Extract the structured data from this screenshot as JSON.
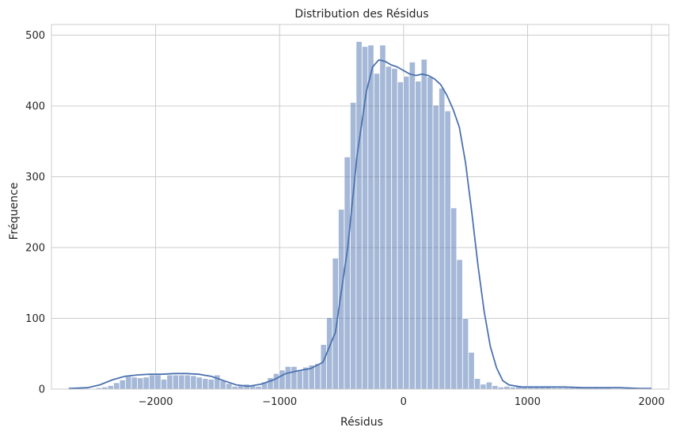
{
  "chart_data": {
    "type": "histogram",
    "title": "Distribution des Résidus",
    "xlabel": "Résidus",
    "ylabel": "Fréquence",
    "xlim": [
      -2840,
      2140
    ],
    "ylim": [
      0,
      515
    ],
    "xticks": [
      -2000,
      -1000,
      0,
      1000,
      2000
    ],
    "xtick_labels": [
      "−2000",
      "−1000",
      "0",
      "1000",
      "2000"
    ],
    "yticks": [
      0,
      100,
      200,
      300,
      400,
      500
    ],
    "ytick_labels": [
      "0",
      "100",
      "200",
      "300",
      "400",
      "500"
    ],
    "grid": true,
    "bar_color": "#4c72b0",
    "bar_alpha": 0.5,
    "line_color": "#4c72b0",
    "bin_width": 47.7,
    "bin_start": -2720,
    "counts": [
      1,
      1,
      1,
      1,
      1,
      2,
      3,
      5,
      9,
      13,
      18,
      17,
      16,
      17,
      20,
      20,
      14,
      20,
      20,
      20,
      20,
      19,
      17,
      15,
      14,
      20,
      12,
      8,
      4,
      5,
      7,
      5,
      4,
      10,
      16,
      22,
      27,
      32,
      32,
      26,
      31,
      34,
      36,
      63,
      101,
      185,
      254,
      328,
      405,
      491,
      484,
      486,
      446,
      486,
      456,
      453,
      434,
      442,
      462,
      435,
      466,
      441,
      401,
      425,
      393,
      256,
      183,
      100,
      52,
      15,
      7,
      10,
      5,
      3,
      4,
      3,
      5,
      4,
      4,
      3,
      3,
      3,
      2,
      2,
      2,
      2,
      2,
      2,
      2,
      2,
      2,
      2,
      1,
      1,
      1,
      1,
      1,
      1,
      1,
      1
    ],
    "kde": [
      [
        -2700,
        1
      ],
      [
        -2550,
        2
      ],
      [
        -2450,
        6
      ],
      [
        -2350,
        13
      ],
      [
        -2250,
        18
      ],
      [
        -2150,
        20
      ],
      [
        -2050,
        21
      ],
      [
        -1950,
        21
      ],
      [
        -1850,
        22
      ],
      [
        -1750,
        22
      ],
      [
        -1650,
        21
      ],
      [
        -1550,
        18
      ],
      [
        -1450,
        12
      ],
      [
        -1350,
        6
      ],
      [
        -1250,
        4
      ],
      [
        -1150,
        7
      ],
      [
        -1050,
        13
      ],
      [
        -950,
        22
      ],
      [
        -850,
        26
      ],
      [
        -750,
        29
      ],
      [
        -650,
        38
      ],
      [
        -550,
        80
      ],
      [
        -450,
        200
      ],
      [
        -375,
        330
      ],
      [
        -300,
        420
      ],
      [
        -250,
        455
      ],
      [
        -200,
        465
      ],
      [
        -150,
        463
      ],
      [
        -100,
        458
      ],
      [
        -50,
        455
      ],
      [
        0,
        450
      ],
      [
        50,
        445
      ],
      [
        100,
        443
      ],
      [
        150,
        445
      ],
      [
        200,
        443
      ],
      [
        250,
        438
      ],
      [
        300,
        430
      ],
      [
        350,
        415
      ],
      [
        400,
        395
      ],
      [
        450,
        370
      ],
      [
        500,
        320
      ],
      [
        550,
        250
      ],
      [
        600,
        175
      ],
      [
        650,
        110
      ],
      [
        700,
        60
      ],
      [
        750,
        30
      ],
      [
        800,
        12
      ],
      [
        850,
        6
      ],
      [
        950,
        3
      ],
      [
        1050,
        3
      ],
      [
        1150,
        3
      ],
      [
        1300,
        3
      ],
      [
        1450,
        2
      ],
      [
        1600,
        2
      ],
      [
        1750,
        2
      ],
      [
        1900,
        1
      ],
      [
        2000,
        1
      ]
    ]
  }
}
